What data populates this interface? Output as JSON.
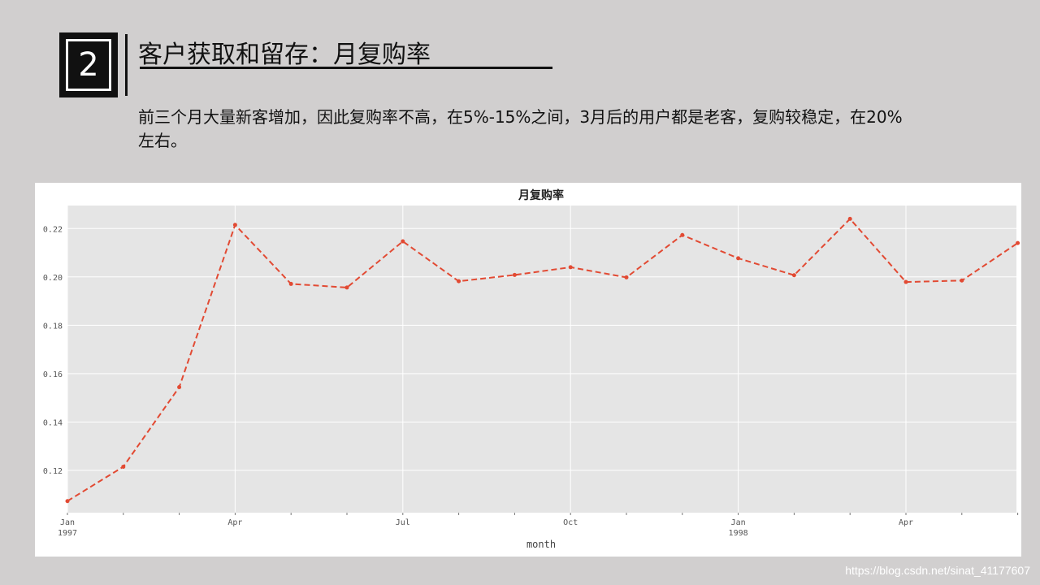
{
  "slide": {
    "number": "2",
    "title": "客户获取和留存：月复购率",
    "description": "前三个月大量新客增加，因此复购率不高，在5%-15%之间，3月后的用户都是老客，复购较稳定，在20%左右。"
  },
  "watermark": "https://blog.csdn.net/sinat_41177607",
  "colors": {
    "background": "#d1cfcf",
    "plot_bg": "#e5e5e5",
    "line": "#e24a33",
    "grid": "#ffffff"
  },
  "chart_data": {
    "type": "line",
    "title": "月复购率",
    "xlabel": "month",
    "ylabel": "",
    "x": [
      "1997-01",
      "1997-02",
      "1997-03",
      "1997-04",
      "1997-05",
      "1997-06",
      "1997-07",
      "1997-08",
      "1997-09",
      "1997-10",
      "1997-11",
      "1997-12",
      "1998-01",
      "1998-02",
      "1998-03",
      "1998-04",
      "1998-05",
      "1998-06"
    ],
    "series": [
      {
        "values": [
          0.1073,
          0.1215,
          0.1544,
          0.2215,
          0.1971,
          0.1956,
          0.2147,
          0.1982,
          0.2008,
          0.204,
          0.1998,
          0.2173,
          0.2077,
          0.2007,
          0.224,
          0.1979,
          0.1985,
          0.214
        ]
      }
    ],
    "line_style": "dashed",
    "marker": "dot",
    "ylim": [
      0.1025,
      0.2295
    ],
    "yticks": [
      "0.12",
      "0.14",
      "0.16",
      "0.18",
      "0.20",
      "0.22"
    ],
    "ytick_values": [
      0.12,
      0.14,
      0.16,
      0.18,
      0.2,
      0.22
    ],
    "xticks": [
      {
        "month": "1997-01",
        "label": "Jan",
        "sublabel": "1997"
      },
      {
        "month": "1997-04",
        "label": "Apr",
        "sublabel": ""
      },
      {
        "month": "1997-07",
        "label": "Jul",
        "sublabel": ""
      },
      {
        "month": "1997-10",
        "label": "Oct",
        "sublabel": ""
      },
      {
        "month": "1998-01",
        "label": "Jan",
        "sublabel": "1998"
      },
      {
        "month": "1998-04",
        "label": "Apr",
        "sublabel": ""
      }
    ],
    "grid": true
  }
}
